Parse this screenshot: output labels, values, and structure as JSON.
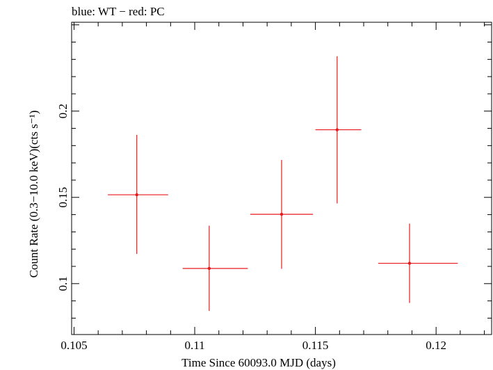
{
  "chart_data": {
    "type": "scatter",
    "title": "blue: WT − red: PC",
    "xlabel": "Time Since 60093.0 MJD (days)",
    "ylabel": "Count Rate (0.3−10.0 keV)(cts s⁻¹)",
    "xlim": [
      0.1049,
      0.1223
    ],
    "ylim": [
      0.0705,
      0.2515
    ],
    "x_ticks": [
      0.105,
      0.11,
      0.115,
      0.12
    ],
    "x_tick_labels": [
      "0.105",
      "0.11",
      "0.115",
      "0.12"
    ],
    "y_ticks": [
      0.1,
      0.15,
      0.2
    ],
    "y_tick_labels": [
      "0.1",
      "0.15",
      "0.2"
    ],
    "grid": false,
    "series": [
      {
        "color": "#e8191c",
        "points": [
          {
            "x": 0.1076,
            "y": 0.1515,
            "xerr_low": 0.0012,
            "xerr_high": 0.0013,
            "y_low": 0.1172,
            "y_high": 0.1862
          },
          {
            "x": 0.1106,
            "y": 0.1088,
            "xerr_low": 0.0011,
            "xerr_high": 0.0016,
            "y_low": 0.0842,
            "y_high": 0.1336
          },
          {
            "x": 0.1136,
            "y": 0.1402,
            "xerr_low": 0.0013,
            "xerr_high": 0.0013,
            "y_low": 0.1086,
            "y_high": 0.1717
          },
          {
            "x": 0.1159,
            "y": 0.1892,
            "xerr_low": 0.0009,
            "xerr_high": 0.001,
            "y_low": 0.1465,
            "y_high": 0.2318
          },
          {
            "x": 0.1189,
            "y": 0.1118,
            "xerr_low": 0.0013,
            "xerr_high": 0.002,
            "y_low": 0.0888,
            "y_high": 0.1348
          }
        ]
      }
    ]
  }
}
